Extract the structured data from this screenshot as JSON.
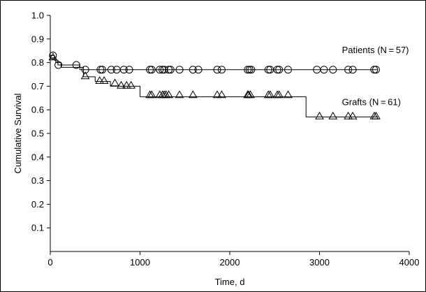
{
  "chart_data": {
    "type": "line",
    "chart_kind": "kaplan-meier survival curves",
    "title": "",
    "xlabel": "Time, d",
    "ylabel": "Cumulative Survival",
    "xlim": [
      0,
      4000
    ],
    "ylim": [
      0,
      1.0
    ],
    "x_ticks": [
      0,
      1000,
      2000,
      3000,
      4000
    ],
    "y_ticks": [
      0.1,
      0.2,
      0.3,
      0.4,
      0.5,
      0.6,
      0.7,
      0.8,
      0.9,
      1.0
    ],
    "x_tick_labels": [
      "0",
      "1000",
      "2000",
      "3000",
      "4000"
    ],
    "y_tick_labels": [
      "0.1",
      "0.2",
      "0.3",
      "0.4",
      "0.5",
      "0.6",
      "0.7",
      "0.8",
      "0.9",
      "1.0"
    ],
    "grid": false,
    "legend": "none",
    "series": [
      {
        "name": "Patients (N = 57)",
        "marker": "circle",
        "color": "#000000",
        "steps": [
          [
            0,
            0.83
          ],
          [
            45,
            0.81
          ],
          [
            85,
            0.79
          ],
          [
            330,
            0.77
          ],
          [
            3650,
            0.77
          ]
        ],
        "censored": [
          [
            30,
            0.83
          ],
          [
            90,
            0.79
          ],
          [
            290,
            0.79
          ],
          [
            390,
            0.77
          ],
          [
            560,
            0.77
          ],
          [
            580,
            0.77
          ],
          [
            680,
            0.77
          ],
          [
            740,
            0.77
          ],
          [
            820,
            0.77
          ],
          [
            880,
            0.77
          ],
          [
            1110,
            0.77
          ],
          [
            1130,
            0.77
          ],
          [
            1220,
            0.77
          ],
          [
            1250,
            0.77
          ],
          [
            1270,
            0.77
          ],
          [
            1320,
            0.77
          ],
          [
            1340,
            0.77
          ],
          [
            1440,
            0.77
          ],
          [
            1590,
            0.77
          ],
          [
            1650,
            0.77
          ],
          [
            1860,
            0.77
          ],
          [
            1910,
            0.77
          ],
          [
            2200,
            0.77
          ],
          [
            2220,
            0.77
          ],
          [
            2240,
            0.77
          ],
          [
            2430,
            0.77
          ],
          [
            2450,
            0.77
          ],
          [
            2530,
            0.77
          ],
          [
            2550,
            0.77
          ],
          [
            2650,
            0.77
          ],
          [
            2970,
            0.77
          ],
          [
            3050,
            0.77
          ],
          [
            3150,
            0.77
          ],
          [
            3320,
            0.77
          ],
          [
            3370,
            0.77
          ],
          [
            3610,
            0.77
          ],
          [
            3630,
            0.77
          ]
        ]
      },
      {
        "name": "Grafts (N = 61)",
        "marker": "triangle",
        "color": "#000000",
        "steps": [
          [
            0,
            0.82
          ],
          [
            60,
            0.8
          ],
          [
            120,
            0.78
          ],
          [
            370,
            0.74
          ],
          [
            500,
            0.72
          ],
          [
            670,
            0.7
          ],
          [
            1000,
            0.655
          ],
          [
            2850,
            0.57
          ],
          [
            3650,
            0.57
          ]
        ],
        "censored": [
          [
            30,
            0.82
          ],
          [
            390,
            0.74
          ],
          [
            550,
            0.72
          ],
          [
            600,
            0.72
          ],
          [
            720,
            0.71
          ],
          [
            790,
            0.7
          ],
          [
            850,
            0.7
          ],
          [
            900,
            0.7
          ],
          [
            1110,
            0.66
          ],
          [
            1130,
            0.66
          ],
          [
            1220,
            0.66
          ],
          [
            1250,
            0.66
          ],
          [
            1270,
            0.66
          ],
          [
            1290,
            0.66
          ],
          [
            1320,
            0.66
          ],
          [
            1440,
            0.66
          ],
          [
            1590,
            0.66
          ],
          [
            1860,
            0.66
          ],
          [
            1910,
            0.66
          ],
          [
            2200,
            0.66
          ],
          [
            2210,
            0.66
          ],
          [
            2230,
            0.66
          ],
          [
            2430,
            0.66
          ],
          [
            2450,
            0.66
          ],
          [
            2530,
            0.66
          ],
          [
            2550,
            0.66
          ],
          [
            2650,
            0.66
          ],
          [
            3000,
            0.57
          ],
          [
            3150,
            0.57
          ],
          [
            3320,
            0.57
          ],
          [
            3370,
            0.57
          ],
          [
            3610,
            0.57
          ],
          [
            3630,
            0.57
          ]
        ]
      }
    ],
    "annotations": [
      {
        "text": "Patients (N = 57)",
        "x": 3250,
        "y": 0.84
      },
      {
        "text": "Grafts (N = 61)",
        "x": 3250,
        "y": 0.62
      }
    ]
  }
}
